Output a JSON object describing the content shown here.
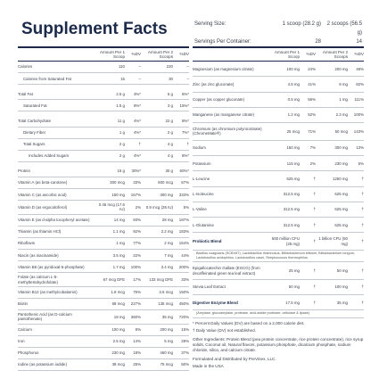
{
  "header": {
    "title": "Supplement Facts",
    "serving_size_label": "Serving Size:",
    "serving_size_1": "1 scoop (28.2 g)",
    "serving_size_2": "2 scoops (56.5 g)",
    "servings_label": "Servings Per Container:",
    "servings_1": "28",
    "servings_2": "14"
  },
  "columns": [
    "Amount Per 1 Scoop",
    "%DV",
    "Amount Per 2 Scoops",
    "%DV"
  ],
  "left_rows": [
    {
      "cells": [
        "Calories",
        "110",
        "–",
        "220",
        "–"
      ],
      "sub": [
        {
          "cells": [
            "Calories from Saturated Fat",
            "15",
            "–",
            "30",
            "–"
          ]
        }
      ]
    },
    {
      "cells": [
        "Total Fat",
        "2.5 g",
        "3%*",
        "5 g",
        "6%*"
      ],
      "sub": [
        {
          "cells": [
            "Saturated Fat",
            "1.5 g",
            "8%*",
            "3 g",
            "15%*"
          ]
        }
      ]
    },
    {
      "cells": [
        "Total Carbohydrate",
        "11 g",
        "4%*",
        "22 g",
        "8%*"
      ],
      "sub": [
        {
          "cells": [
            "Dietary Fiber",
            "1 g",
            "4%*",
            "2 g",
            "7%*"
          ]
        },
        {
          "cells": [
            "Total Sugars",
            "2 g",
            "†",
            "4 g",
            "†"
          ],
          "sub": [
            {
              "cells": [
                "Includes Added Sugars",
                "2 g",
                "4%*",
                "4 g",
                "8%*"
              ]
            }
          ]
        }
      ]
    },
    {
      "cells": [
        "Protein",
        "15 g",
        "30%*",
        "30 g",
        "60%*"
      ]
    },
    {
      "cells": [
        "Vitamin A (as beta-carotene)",
        "300 mcg",
        "33%",
        "600 mcg",
        "67%"
      ]
    },
    {
      "cells": [
        "Vitamin C (as ascorbic acid)",
        "150 mg",
        "167%",
        "300 mg",
        "333%"
      ]
    },
    {
      "cells": [
        "Vitamin D (as ergocalciferol)",
        "0.45 mcg (17.6 IU)",
        "2%",
        "0.9 mcg (35 IU)",
        "5%"
      ]
    },
    {
      "cells": [
        "Vitamin E (as d-alpha tocopheryl acetate)",
        "14 mg",
        "93%",
        "28 mg",
        "187%"
      ]
    },
    {
      "cells": [
        "Thiamin (as thiamin HCl)",
        "1.1 mg",
        "92%",
        "2.2 mg",
        "183%"
      ]
    },
    {
      "cells": [
        "Riboflavin",
        "1 mg",
        "77%",
        "2 mg",
        "154%"
      ]
    },
    {
      "cells": [
        "Niacin (as niacinamide)",
        "3.5 mg",
        "22%",
        "7 mg",
        "44%"
      ]
    },
    {
      "cells": [
        "Vitamin B6 (as pyridoxal-5-phosphate)",
        "1.7 mg",
        "100%",
        "3.4 mg",
        "200%"
      ]
    },
    {
      "cells": [
        "Folate (as calcium L-5-methyltetrahydrofolate)",
        "67 mcg DFE",
        "17%",
        "133 mcg DFE",
        "33%"
      ]
    },
    {
      "cells": [
        "Vitamin B12 (as methylcobalamin)",
        "1.8 mcg",
        "75%",
        "3.6 mcg",
        "150%"
      ]
    },
    {
      "cells": [
        "Biotin",
        "68 mcg",
        "227%",
        "135 mcg",
        "450%"
      ]
    },
    {
      "cells": [
        "Pantothenic Acid (as D-calcium pantothenate)",
        "18 mg",
        "360%",
        "35 mg",
        "720%"
      ]
    },
    {
      "cells": [
        "Calcium",
        "100 mg",
        "8%",
        "200 mg",
        "15%"
      ]
    },
    {
      "cells": [
        "Iron",
        "2.5 mg",
        "14%",
        "5 mg",
        "28%"
      ]
    },
    {
      "cells": [
        "Phosphorus",
        "230 mg",
        "18%",
        "460 mg",
        "37%"
      ]
    },
    {
      "cells": [
        "Iodine (as potassium iodide)",
        "38 mcg",
        "25%",
        "75 mcg",
        "50%"
      ]
    }
  ],
  "right_rows": [
    {
      "cells": [
        "Magnesium (as magnesium citrate)",
        "100 mg",
        "24%",
        "200 mg",
        "48%"
      ]
    },
    {
      "cells": [
        "Zinc (as zinc gluconate)",
        "4.5 mg",
        "41%",
        "9 mg",
        "82%"
      ]
    },
    {
      "cells": [
        "Copper (as copper gluconate)",
        "0.5 mg",
        "56%",
        "1 mg",
        "111%"
      ]
    },
    {
      "cells": [
        "Manganese (as manganese citrate)",
        "1.2 mg",
        "52%",
        "2.3 mg",
        "100%"
      ]
    },
    {
      "cells": [
        "Chromium (as chromium polynicotinate) (ChromeMate®)",
        "25 mcg",
        "71%",
        "50 mcg",
        "143%"
      ]
    },
    {
      "cells": [
        "Sodium",
        "150 mg",
        "7%",
        "300 mg",
        "13%"
      ]
    },
    {
      "cells": [
        "Potassium",
        "115 mg",
        "2%",
        "230 mg",
        "5%"
      ]
    },
    {
      "cells": [
        "L-Leucine",
        "625 mg",
        "†",
        "1250 mg",
        "†"
      ]
    },
    {
      "cells": [
        "L-Isoleucine",
        "312.5 mg",
        "†",
        "625 mg",
        "†"
      ]
    },
    {
      "cells": [
        "L-Valine",
        "312.5 mg",
        "†",
        "625 mg",
        "†"
      ]
    },
    {
      "cells": [
        "L-Glutamine",
        "312.5 mg",
        "†",
        "625 mg",
        "†"
      ]
    },
    {
      "cells": [
        "Probiotic Blend",
        "500 million CFU (25 mg)",
        "†",
        "1 billion CFU (50 mg)",
        "†"
      ],
      "note": "Bacillus coagulans (SCBV67), Lactobacillus rhamnosus, Bifidobacterium bifidum, Bifidobacterium longum, Lactobacillus acidophilus, Lactobacillus casei, Streptococcus thermophilus"
    },
    {
      "cells": [
        "Epigallocatechin Gallate (EGCG) (from decaffeinated green tea leaf extract)",
        "25 mg",
        "†",
        "50 mg",
        "†"
      ]
    },
    {
      "cells": [
        "Stevia Leaf Extract",
        "50 mg",
        "†",
        "100 mg",
        "†"
      ]
    },
    {
      "cells": [
        "Digestive Enzyme Blend",
        "17.5 mg",
        "†",
        "35 mg",
        "†"
      ],
      "note": "(Amylase, glucoamylase, protease, acid-stable protease, cellulase & lipase)"
    }
  ],
  "footnotes": [
    "* Percent Daily Values (DV) are based on a 2,000 calorie diet.",
    "† Daily Value (DV) not established."
  ],
  "other_ingredients": "Other Ingredients: Protein Blend (pea protein concentrate, rice protein concentrate), rice syrup solids, Coconut oil, Natural flavors, potassium phosphate, dicalcium phosphate, sodium chloride, silica, and calcium citrate.",
  "distributor": "Formulated and Distributed by PreVinex, LLC.",
  "origin": "Made in the USA"
}
